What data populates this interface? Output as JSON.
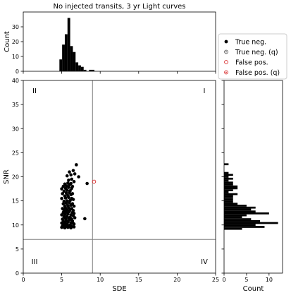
{
  "chart_data": [
    {
      "panel": "top-histogram",
      "type": "bar",
      "title": "No injected transits, 3 yr Light curves",
      "xlabel": "",
      "ylabel": "Count",
      "xlim": [
        0,
        25
      ],
      "ylim": [
        0,
        40
      ],
      "yticks": [
        0,
        10,
        20,
        30
      ],
      "bin_width": 0.35,
      "bins": [
        {
          "x0": 4.7,
          "count": 8
        },
        {
          "x0": 5.05,
          "count": 18
        },
        {
          "x0": 5.4,
          "count": 25
        },
        {
          "x0": 5.75,
          "count": 36
        },
        {
          "x0": 6.1,
          "count": 17
        },
        {
          "x0": 6.45,
          "count": 13
        },
        {
          "x0": 6.8,
          "count": 6
        },
        {
          "x0": 7.15,
          "count": 4
        },
        {
          "x0": 7.5,
          "count": 3
        },
        {
          "x0": 7.85,
          "count": 1
        },
        {
          "x0": 8.55,
          "count": 1
        },
        {
          "x0": 8.9,
          "count": 1
        }
      ]
    },
    {
      "panel": "scatter",
      "type": "scatter",
      "xlabel": "SDE",
      "ylabel": "SNR",
      "xlim": [
        0,
        25
      ],
      "ylim": [
        0,
        40
      ],
      "xticks": [
        0,
        5,
        10,
        15,
        20,
        25
      ],
      "yticks": [
        0,
        5,
        10,
        15,
        20,
        25,
        30,
        35,
        40
      ],
      "threshold_x": 9,
      "threshold_y": 7,
      "quadrants": [
        "I",
        "II",
        "III",
        "IV"
      ],
      "legend_position": "right-of-top-panel",
      "series": [
        {
          "name": "True neg.",
          "marker": "filled-circle",
          "color": "#000000",
          "points": [
            [
              5.0,
              9.5
            ],
            [
              5.2,
              9.6
            ],
            [
              5.4,
              9.4
            ],
            [
              5.6,
              9.7
            ],
            [
              5.8,
              9.5
            ],
            [
              6.0,
              9.6
            ],
            [
              6.2,
              9.4
            ],
            [
              5.1,
              9.8
            ],
            [
              5.5,
              9.9
            ],
            [
              5.9,
              9.8
            ],
            [
              6.3,
              9.7
            ],
            [
              5.3,
              10.1
            ],
            [
              5.7,
              10.2
            ],
            [
              6.1,
              10.0
            ],
            [
              6.5,
              10.3
            ],
            [
              5.0,
              10.4
            ],
            [
              5.4,
              10.5
            ],
            [
              5.8,
              10.6
            ],
            [
              6.2,
              10.4
            ],
            [
              6.6,
              10.2
            ],
            [
              5.2,
              10.8
            ],
            [
              5.6,
              10.9
            ],
            [
              6.0,
              11.0
            ],
            [
              6.4,
              10.8
            ],
            [
              5.1,
              11.2
            ],
            [
              5.5,
              11.3
            ],
            [
              5.9,
              11.4
            ],
            [
              6.3,
              11.2
            ],
            [
              6.7,
              11.5
            ],
            [
              5.3,
              11.7
            ],
            [
              5.7,
              11.8
            ],
            [
              6.1,
              11.6
            ],
            [
              6.5,
              11.9
            ],
            [
              5.0,
              12.1
            ],
            [
              5.4,
              12.2
            ],
            [
              5.8,
              12.3
            ],
            [
              6.2,
              12.1
            ],
            [
              6.6,
              12.4
            ],
            [
              5.2,
              12.6
            ],
            [
              5.6,
              12.7
            ],
            [
              6.0,
              12.8
            ],
            [
              6.4,
              12.6
            ],
            [
              5.3,
              13.0
            ],
            [
              5.7,
              13.1
            ],
            [
              6.1,
              13.2
            ],
            [
              6.5,
              13.0
            ],
            [
              5.1,
              13.4
            ],
            [
              5.5,
              13.5
            ],
            [
              5.9,
              13.6
            ],
            [
              6.3,
              13.4
            ],
            [
              5.4,
              13.9
            ],
            [
              5.8,
              14.0
            ],
            [
              6.2,
              14.1
            ],
            [
              6.6,
              13.9
            ],
            [
              5.2,
              14.4
            ],
            [
              5.6,
              14.5
            ],
            [
              6.0,
              14.6
            ],
            [
              6.4,
              14.4
            ],
            [
              5.3,
              14.9
            ],
            [
              5.7,
              15.0
            ],
            [
              6.1,
              15.1
            ],
            [
              6.5,
              15.3
            ],
            [
              5.0,
              15.5
            ],
            [
              5.5,
              15.6
            ],
            [
              5.9,
              15.7
            ],
            [
              6.3,
              15.5
            ],
            [
              5.4,
              16.0
            ],
            [
              5.8,
              16.1
            ],
            [
              6.2,
              16.3
            ],
            [
              5.1,
              16.5
            ],
            [
              5.6,
              16.6
            ],
            [
              6.0,
              16.7
            ],
            [
              6.4,
              16.5
            ],
            [
              5.3,
              17.0
            ],
            [
              5.7,
              17.2
            ],
            [
              6.1,
              17.1
            ],
            [
              5.0,
              17.5
            ],
            [
              5.5,
              17.6
            ],
            [
              5.9,
              17.8
            ],
            [
              6.3,
              17.6
            ],
            [
              5.2,
              18.0
            ],
            [
              5.6,
              18.1
            ],
            [
              6.0,
              18.3
            ],
            [
              6.4,
              18.0
            ],
            [
              5.4,
              18.5
            ],
            [
              5.8,
              18.7
            ],
            [
              6.2,
              18.6
            ],
            [
              6.6,
              19.0
            ],
            [
              5.9,
              19.3
            ],
            [
              6.3,
              19.5
            ],
            [
              5.7,
              20.2
            ],
            [
              6.2,
              20.4
            ],
            [
              6.7,
              20.6
            ],
            [
              6.0,
              21.0
            ],
            [
              6.5,
              21.3
            ],
            [
              7.2,
              20.0
            ],
            [
              6.9,
              22.5
            ],
            [
              8.3,
              18.6
            ],
            [
              8.0,
              11.3
            ],
            [
              6.6,
              9.6
            ]
          ]
        },
        {
          "name": "True neg. (q)",
          "marker": "circle-dot",
          "color": "#555555",
          "points": []
        },
        {
          "name": "False pos.",
          "marker": "open-circle",
          "color": "#d62728",
          "points": [
            [
              9.2,
              19.0
            ]
          ]
        },
        {
          "name": "False pos. (q)",
          "marker": "circle-dot",
          "color": "#d62728",
          "points": []
        }
      ]
    },
    {
      "panel": "right-histogram",
      "type": "bar",
      "orientation": "horizontal",
      "xlabel": "Count",
      "ylabel": "",
      "xlim": [
        0,
        13
      ],
      "ylim": [
        0,
        40
      ],
      "xticks": [
        0,
        5,
        10
      ],
      "bin_width": 0.4,
      "bins": [
        {
          "y0": 9.0,
          "count": 4
        },
        {
          "y0": 9.4,
          "count": 9
        },
        {
          "y0": 9.8,
          "count": 7
        },
        {
          "y0": 10.2,
          "count": 12
        },
        {
          "y0": 10.6,
          "count": 8
        },
        {
          "y0": 11.0,
          "count": 6
        },
        {
          "y0": 11.4,
          "count": 4
        },
        {
          "y0": 11.8,
          "count": 5
        },
        {
          "y0": 12.2,
          "count": 10
        },
        {
          "y0": 12.6,
          "count": 7
        },
        {
          "y0": 13.0,
          "count": 6
        },
        {
          "y0": 13.4,
          "count": 7
        },
        {
          "y0": 13.8,
          "count": 5
        },
        {
          "y0": 14.2,
          "count": 3
        },
        {
          "y0": 14.6,
          "count": 2
        },
        {
          "y0": 15.0,
          "count": 2
        },
        {
          "y0": 15.4,
          "count": 2
        },
        {
          "y0": 15.8,
          "count": 2
        },
        {
          "y0": 16.2,
          "count": 3
        },
        {
          "y0": 16.6,
          "count": 1
        },
        {
          "y0": 17.0,
          "count": 2
        },
        {
          "y0": 17.4,
          "count": 3
        },
        {
          "y0": 17.8,
          "count": 3
        },
        {
          "y0": 18.2,
          "count": 2
        },
        {
          "y0": 18.6,
          "count": 2
        },
        {
          "y0": 19.0,
          "count": 1
        },
        {
          "y0": 19.4,
          "count": 2
        },
        {
          "y0": 19.8,
          "count": 1
        },
        {
          "y0": 20.2,
          "count": 2
        },
        {
          "y0": 20.6,
          "count": 1
        },
        {
          "y0": 22.4,
          "count": 1
        }
      ]
    }
  ]
}
